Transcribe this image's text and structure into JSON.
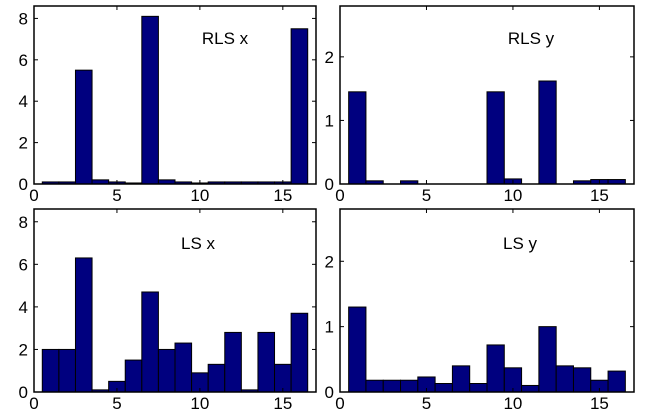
{
  "chart_data": [
    {
      "type": "bar",
      "title": "RLS x",
      "x": [
        1,
        2,
        3,
        4,
        5,
        6,
        7,
        8,
        9,
        10,
        11,
        12,
        13,
        14,
        15,
        16
      ],
      "values": [
        0.1,
        0.1,
        5.5,
        0.2,
        0.1,
        0.05,
        8.1,
        0.2,
        0.1,
        0.05,
        0.1,
        0.1,
        0.1,
        0.1,
        0.1,
        7.5
      ],
      "xlim": [
        0,
        17
      ],
      "ylim": [
        0,
        8.6
      ],
      "xticks": [
        0,
        5,
        10,
        15
      ],
      "yticks": [
        0,
        2,
        4,
        6,
        8
      ],
      "bar_color": "#00007f",
      "grid": false
    },
    {
      "type": "bar",
      "title": "RLS y",
      "x": [
        1,
        2,
        3,
        4,
        5,
        6,
        7,
        8,
        9,
        10,
        11,
        12,
        13,
        14,
        15,
        16
      ],
      "values": [
        1.45,
        0.05,
        0.0,
        0.05,
        0.0,
        0.0,
        0.0,
        0.0,
        1.45,
        0.08,
        0.0,
        1.62,
        0.0,
        0.05,
        0.07,
        0.07
      ],
      "xlim": [
        0,
        17
      ],
      "ylim": [
        0,
        2.8
      ],
      "xticks": [
        0,
        5,
        10,
        15
      ],
      "yticks": [
        0,
        1,
        2
      ],
      "bar_color": "#00007f",
      "grid": false
    },
    {
      "type": "bar",
      "title": "LS x",
      "x": [
        1,
        2,
        3,
        4,
        5,
        6,
        7,
        8,
        9,
        10,
        11,
        12,
        13,
        14,
        15,
        16
      ],
      "values": [
        2.0,
        2.0,
        6.3,
        0.1,
        0.5,
        1.5,
        4.7,
        2.0,
        2.3,
        0.9,
        1.3,
        2.8,
        0.1,
        2.8,
        1.3,
        3.7
      ],
      "xlim": [
        0,
        17
      ],
      "ylim": [
        0,
        8.6
      ],
      "xticks": [
        0,
        5,
        10,
        15
      ],
      "yticks": [
        0,
        2,
        4,
        6,
        8
      ],
      "bar_color": "#00007f",
      "grid": false
    },
    {
      "type": "bar",
      "title": "LS y",
      "x": [
        1,
        2,
        3,
        4,
        5,
        6,
        7,
        8,
        9,
        10,
        11,
        12,
        13,
        14,
        15,
        16
      ],
      "values": [
        1.3,
        0.18,
        0.18,
        0.18,
        0.23,
        0.13,
        0.4,
        0.13,
        0.72,
        0.37,
        0.1,
        1.0,
        0.4,
        0.37,
        0.18,
        0.32
      ],
      "xlim": [
        0,
        17
      ],
      "ylim": [
        0,
        2.8
      ],
      "xticks": [
        0,
        5,
        10,
        15
      ],
      "yticks": [
        0,
        1,
        2
      ],
      "bar_color": "#00007f",
      "grid": false
    }
  ]
}
